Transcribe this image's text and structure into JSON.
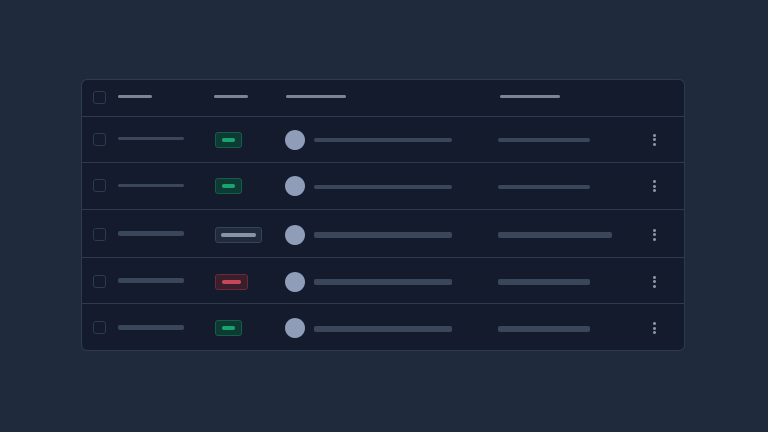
{
  "colors": {
    "background": "#1f2a3c",
    "card": "#131b2d",
    "success": "#19a36e",
    "danger": "#c5475c",
    "neutral": "#8a93a4",
    "avatar": "#8f9db8"
  },
  "table": {
    "state": "loading-skeleton",
    "rows": [
      {
        "status": "success"
      },
      {
        "status": "success"
      },
      {
        "status": "neutral"
      },
      {
        "status": "danger"
      },
      {
        "status": "success"
      }
    ]
  }
}
